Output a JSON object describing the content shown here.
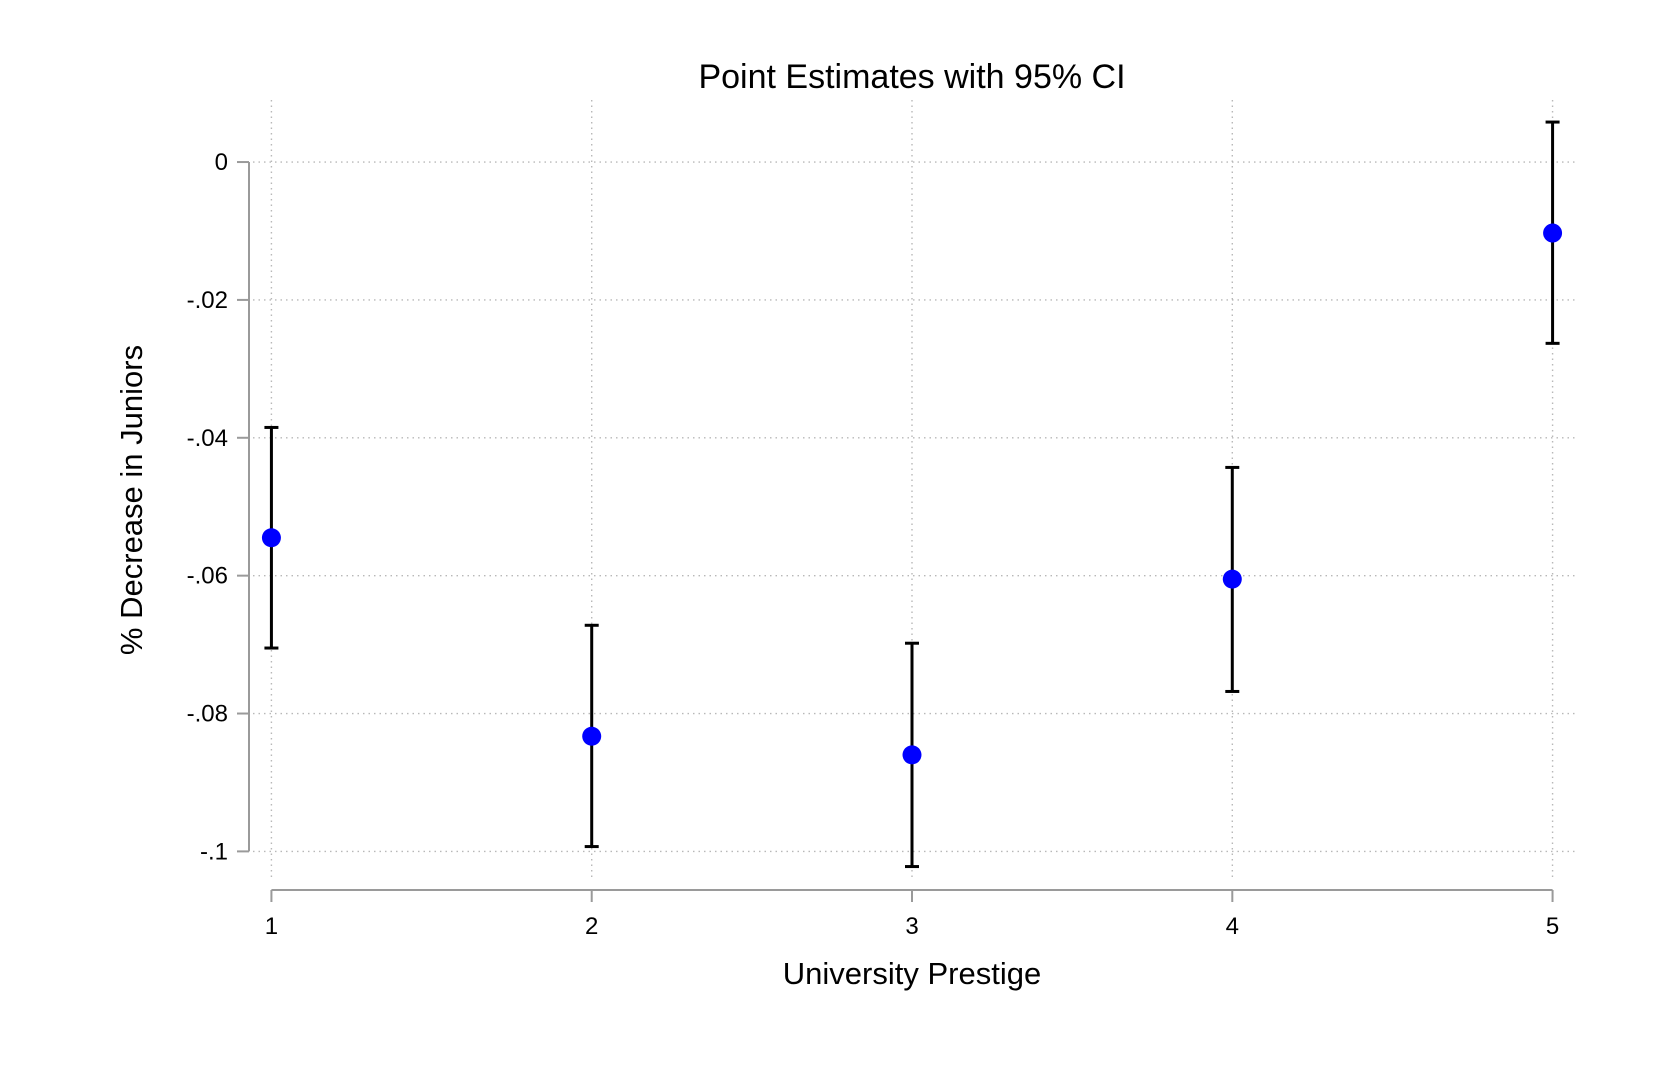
{
  "chart_data": {
    "type": "scatter",
    "title": "Point Estimates with 95% CI",
    "xlabel": "University Prestige",
    "ylabel": "% Decrease in Juniors",
    "x": [
      1,
      2,
      3,
      4,
      5
    ],
    "x_ticks": [
      1,
      2,
      3,
      4,
      5
    ],
    "x_tick_labels": [
      "1",
      "2",
      "3",
      "4",
      "5"
    ],
    "y_ticks": [
      0,
      -0.02,
      -0.04,
      -0.06,
      -0.08,
      -0.1
    ],
    "y_tick_labels": [
      "0",
      "-.02",
      "-.04",
      "-.06",
      "-.08",
      "-.1"
    ],
    "xlim": [
      0.93,
      5.07
    ],
    "ylim": [
      -0.1056,
      0.009
    ],
    "grid": true,
    "series": [
      {
        "values": [
          -0.0545,
          -0.0833,
          -0.086,
          -0.0605,
          -0.0103
        ],
        "ci_lower": [
          -0.0705,
          -0.0993,
          -0.1022,
          -0.0768,
          -0.0263
        ],
        "ci_upper": [
          -0.0385,
          -0.0672,
          -0.0698,
          -0.0443,
          0.0058
        ],
        "marker_color": "#0000ff",
        "error_bar_color": "#000000"
      }
    ]
  }
}
